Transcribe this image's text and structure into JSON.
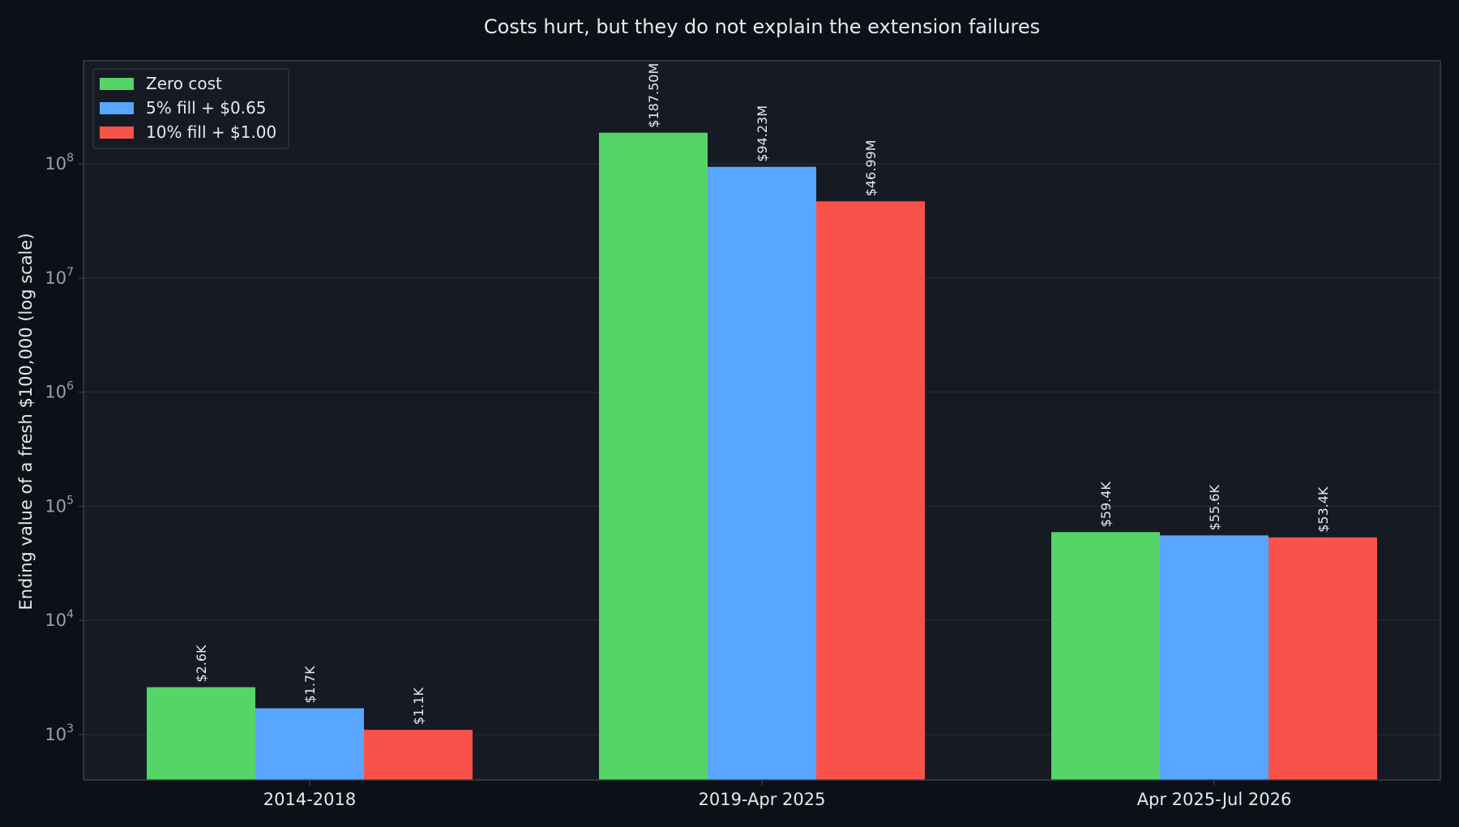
{
  "chart_data": {
    "type": "bar",
    "title": "Costs hurt, but they do not explain the extension failures",
    "xlabel": "",
    "ylabel": "Ending value of a fresh $100,000 (log scale)",
    "yscale": "log",
    "ylim": [
      400,
      800000000
    ],
    "yticks": [
      {
        "value": 1000,
        "base": "10",
        "exp": "3"
      },
      {
        "value": 10000,
        "base": "10",
        "exp": "4"
      },
      {
        "value": 100000,
        "base": "10",
        "exp": "5"
      },
      {
        "value": 1000000,
        "base": "10",
        "exp": "6"
      },
      {
        "value": 10000000,
        "base": "10",
        "exp": "7"
      },
      {
        "value": 100000000,
        "base": "10",
        "exp": "8"
      }
    ],
    "grid": true,
    "legend_position": "top-left",
    "categories": [
      "2014-2018",
      "2019-Apr 2025",
      "Apr 2025-Jul 2026"
    ],
    "series": [
      {
        "name": "Zero cost",
        "color": "#55d468",
        "values": [
          2600,
          187500000,
          59400
        ],
        "labels": [
          "$2.6K",
          "$187.50M",
          "$59.4K"
        ]
      },
      {
        "name": "5% fill + $0.65",
        "color": "#58a6ff",
        "values": [
          1700,
          94230000,
          55600
        ],
        "labels": [
          "$1.7K",
          "$94.23M",
          "$55.6K"
        ]
      },
      {
        "name": "10% fill + $1.00",
        "color": "#f9524b",
        "values": [
          1100,
          46990000,
          53400
        ],
        "labels": [
          "$1.1K",
          "$46.99M",
          "$53.4K"
        ]
      }
    ]
  },
  "colors": {
    "page_bg": "#0c1017",
    "plot_bg": "#161b23",
    "grid": "#262c36",
    "axis": "#3a404a"
  }
}
